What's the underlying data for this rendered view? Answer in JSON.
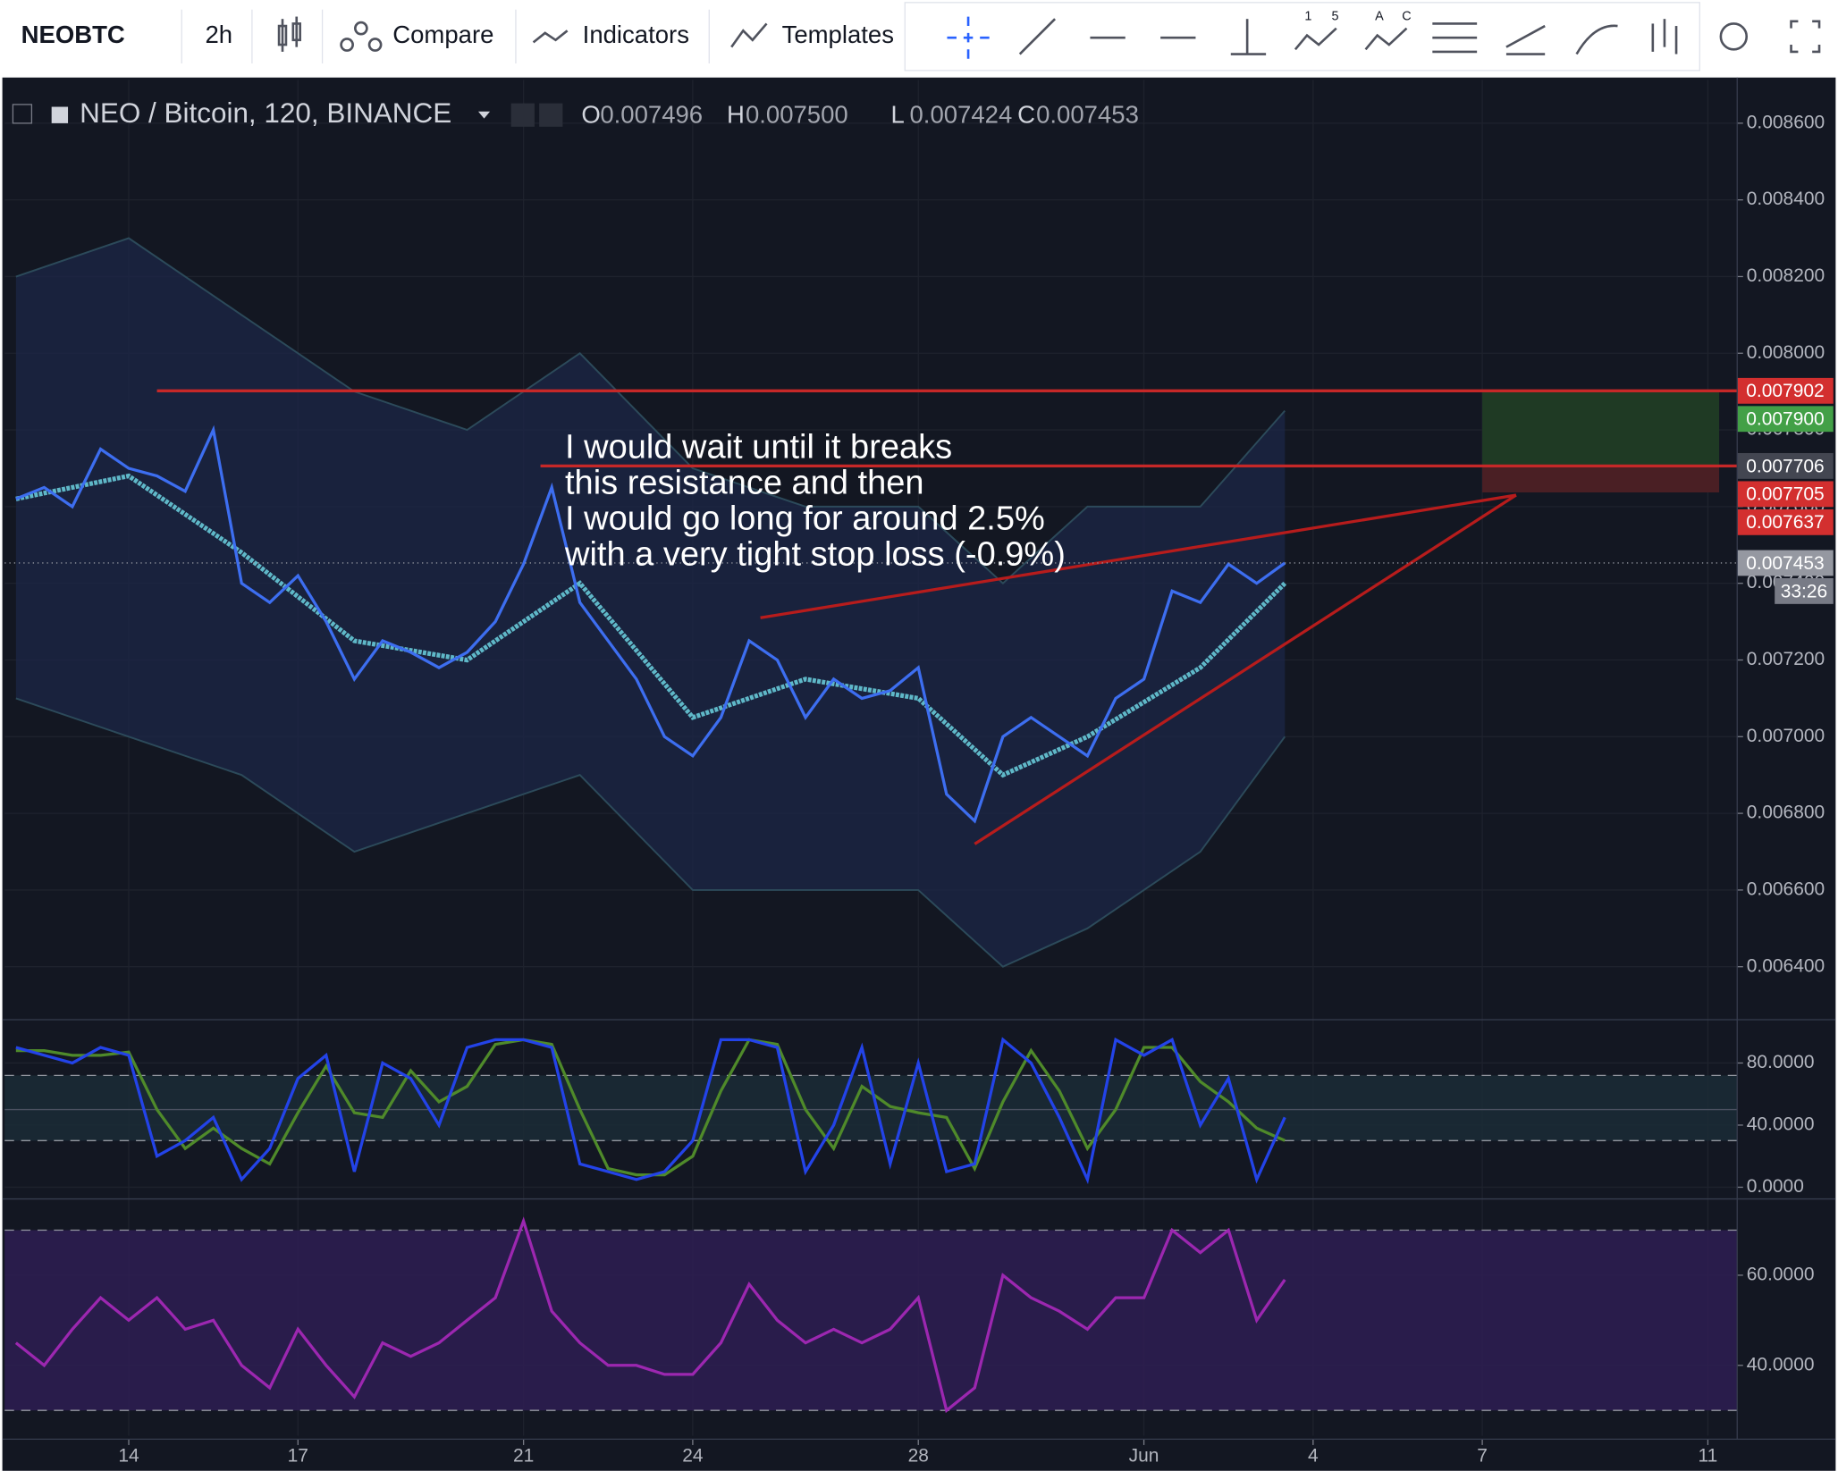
{
  "toolbar": {
    "symbol": "NEOBTC",
    "interval": "2h",
    "buttons": [
      "Compare",
      "Indicators",
      "Templates"
    ],
    "wave_labels": [
      [
        "1",
        "5"
      ],
      [
        "A",
        "C"
      ]
    ]
  },
  "chart_data": [
    {
      "type": "line",
      "title": "NEO / Bitcoin, 120, BINANCE",
      "ohlc": [
        {
          "name": "O",
          "value": 0.007496
        },
        {
          "name": "H",
          "value": 0.0075,
          "label": "0.007500"
        },
        {
          "name": "L",
          "value": 0.007424
        },
        {
          "name": "C",
          "value": 0.007453
        }
      ],
      "annotation": [
        "I would wait until it breaks",
        "this resistance and then",
        "I would go long for around 2.5%",
        "with a very tight stop loss (-0.9%)"
      ],
      "xlim": [
        11.8,
        42.52
      ],
      "ylim": [
        0.006268,
        0.008713
      ],
      "yticks": [
        {
          "value": 0.0064,
          "label": "0.006400"
        },
        {
          "value": 0.0066,
          "label": "0.006600"
        },
        {
          "value": 0.0068,
          "label": "0.006800"
        },
        {
          "value": 0.007,
          "label": "0.007000"
        },
        {
          "value": 0.0072,
          "label": "0.007200"
        },
        {
          "value": 0.0074,
          "label": "0.007400"
        },
        {
          "value": 0.0076,
          "label": "0.007600"
        },
        {
          "value": 0.0078,
          "label": "0.007800"
        },
        {
          "value": 0.008,
          "label": "0.008000"
        },
        {
          "value": 0.0082,
          "label": "0.008200"
        },
        {
          "value": 0.0084,
          "label": "0.008400"
        },
        {
          "value": 0.0086,
          "label": "0.008600"
        }
      ],
      "x": [
        12,
        12.5,
        13,
        13.5,
        14,
        14.5,
        15,
        15.5,
        16,
        16.5,
        17,
        17.5,
        18,
        18.5,
        19,
        19.5,
        20,
        20.5,
        21,
        21.5,
        22,
        22.5,
        23,
        23.5,
        24,
        24.5,
        25,
        25.5,
        26,
        26.5,
        27,
        27.5,
        28,
        28.5,
        29,
        29.5,
        30,
        30.5,
        31,
        31.5,
        32,
        32.5,
        33,
        33.5,
        34,
        34.5
      ],
      "series": [
        {
          "color": "#3d6ef0",
          "values": [
            0.00762,
            0.00765,
            0.0076,
            0.00775,
            0.0077,
            0.00768,
            0.00764,
            0.0078,
            0.0074,
            0.00735,
            0.00742,
            0.0073,
            0.00715,
            0.00725,
            0.00722,
            0.00718,
            0.00722,
            0.0073,
            0.00745,
            0.00765,
            0.00735,
            0.00725,
            0.00715,
            0.007,
            0.00695,
            0.00705,
            0.00725,
            0.0072,
            0.00705,
            0.00715,
            0.0071,
            0.00712,
            0.00718,
            0.00685,
            0.00678,
            0.007,
            0.00705,
            0.007,
            0.00695,
            0.0071,
            0.00715,
            0.00738,
            0.00735,
            0.00745,
            0.0074,
            0.007453
          ]
        }
      ],
      "bands": {
        "x": [
          12,
          14,
          16,
          18,
          20,
          22,
          24,
          26,
          28,
          29.5,
          31,
          33,
          34.5
        ],
        "color": "#1b2545",
        "line_color": "#2c4a5a",
        "upper": [
          0.0082,
          0.0083,
          0.0081,
          0.0079,
          0.0078,
          0.008,
          0.0077,
          0.0076,
          0.0076,
          0.0074,
          0.0076,
          0.0076,
          0.00785
        ],
        "lower": [
          0.0071,
          0.007,
          0.0069,
          0.0067,
          0.0068,
          0.0069,
          0.0066,
          0.0066,
          0.0066,
          0.0064,
          0.0065,
          0.0067,
          0.007
        ]
      },
      "ma": {
        "x": [
          12,
          14,
          16,
          18,
          20,
          22,
          24,
          26,
          28,
          29.5,
          31,
          33,
          34.5
        ],
        "color": "#5fb8c8",
        "values": [
          0.00762,
          0.00768,
          0.00748,
          0.00725,
          0.0072,
          0.0074,
          0.00705,
          0.00715,
          0.0071,
          0.0069,
          0.007,
          0.00718,
          0.0074
        ]
      },
      "levels": [
        {
          "value": 0.007902,
          "from": 14.5,
          "color": "#c62828"
        },
        {
          "value": 0.007706,
          "from": 21.3,
          "color": "#c62828"
        }
      ],
      "trend_lines": [
        {
          "color": "#b71c1c",
          "points": [
            [
              25.2,
              0.00731
            ],
            [
              38.6,
              0.00763
            ]
          ]
        },
        {
          "color": "#b71c1c",
          "points": [
            [
              29,
              0.00672
            ],
            [
              38.6,
              0.00763
            ]
          ]
        }
      ],
      "position": {
        "from": 38,
        "to": 42.2,
        "target": 0.0079,
        "entry": 0.007706,
        "stop": 0.007637,
        "profit_color": "#1f3a24",
        "loss_color": "#4a1f24"
      },
      "price_tags": [
        {
          "value": 0.007902,
          "label": "0.007902",
          "color": "#d32f2f"
        },
        {
          "value": 0.0079,
          "label": "0.007900",
          "color": "#43a047"
        },
        {
          "value": 0.007706,
          "label": "0.007706",
          "color": "#434651"
        },
        {
          "value": 0.007705,
          "label": "0.007705",
          "color": "#d32f2f"
        },
        {
          "value": 0.007637,
          "label": "0.007637",
          "color": "#d32f2f"
        },
        {
          "value": 0.007453,
          "label": "0.007453",
          "color": "#9598a1"
        }
      ],
      "countdown": "33:26"
    },
    {
      "type": "line",
      "xlim": [
        11.8,
        42.52
      ],
      "ylim": [
        -6.8,
        106.4
      ],
      "yticks": [
        {
          "value": 0,
          "label": "0.0000"
        },
        {
          "value": 40,
          "label": "40.0000"
        },
        {
          "value": 80,
          "label": "80.0000"
        }
      ],
      "band": [
        30,
        72
      ],
      "band_color": "#1b2c36",
      "mid_line": 50,
      "x": [
        12,
        12.5,
        13,
        13.5,
        14,
        14.5,
        15,
        15.5,
        16,
        16.5,
        17,
        17.5,
        18,
        18.5,
        19,
        19.5,
        20,
        20.5,
        21,
        21.5,
        22,
        22.5,
        23,
        23.5,
        24,
        24.5,
        25,
        25.5,
        26,
        26.5,
        27,
        27.5,
        28,
        28.5,
        29,
        29.5,
        30,
        30.5,
        31,
        31.5,
        32,
        32.5,
        33,
        33.5,
        34,
        34.5
      ],
      "series": [
        {
          "color": "#4f8a2a",
          "values": [
            88,
            88,
            85,
            85,
            87,
            50,
            25,
            38,
            25,
            15,
            48,
            78,
            48,
            45,
            75,
            55,
            65,
            92,
            95,
            92,
            50,
            12,
            8,
            8,
            20,
            62,
            95,
            92,
            50,
            25,
            65,
            52,
            48,
            45,
            12,
            55,
            88,
            62,
            25,
            50,
            90,
            90,
            68,
            55,
            38,
            30
          ]
        },
        {
          "color": "#2343e8",
          "values": [
            90,
            85,
            80,
            90,
            85,
            20,
            30,
            45,
            5,
            25,
            70,
            85,
            10,
            80,
            70,
            40,
            90,
            95,
            95,
            90,
            15,
            10,
            5,
            10,
            30,
            95,
            95,
            90,
            10,
            40,
            90,
            15,
            80,
            10,
            15,
            95,
            80,
            45,
            5,
            95,
            85,
            95,
            40,
            70,
            5,
            45
          ]
        }
      ]
    },
    {
      "type": "line",
      "xlim": [
        11.8,
        42.52
      ],
      "ylim": [
        24.4,
        76.4
      ],
      "yticks": [
        {
          "value": 40,
          "label": "40.0000"
        },
        {
          "value": 60,
          "label": "60.0000"
        }
      ],
      "band": [
        30,
        70
      ],
      "band_color": "#2e1d52",
      "xticks": [
        14,
        17,
        21,
        24,
        28,
        {
          "value": 32,
          "label": "Jun"
        },
        {
          "value": 35,
          "label": "4"
        },
        {
          "value": 38,
          "label": "7"
        },
        {
          "value": 42,
          "label": "11"
        }
      ],
      "x": [
        12,
        12.5,
        13,
        13.5,
        14,
        14.5,
        15,
        15.5,
        16,
        16.5,
        17,
        17.5,
        18,
        18.5,
        19,
        19.5,
        20,
        20.5,
        21,
        21.5,
        22,
        22.5,
        23,
        23.5,
        24,
        24.5,
        25,
        25.5,
        26,
        26.5,
        27,
        27.5,
        28,
        28.5,
        29,
        29.5,
        30,
        30.5,
        31,
        31.5,
        32,
        32.5,
        33,
        33.5,
        34,
        34.5
      ],
      "series": [
        {
          "color": "#9c27b0",
          "values": [
            45,
            40,
            48,
            55,
            50,
            55,
            48,
            50,
            40,
            35,
            48,
            40,
            33,
            45,
            42,
            45,
            50,
            55,
            72,
            52,
            45,
            40,
            40,
            38,
            38,
            45,
            58,
            50,
            45,
            48,
            45,
            48,
            55,
            30,
            35,
            60,
            55,
            52,
            48,
            55,
            55,
            70,
            65,
            70,
            50,
            59
          ]
        }
      ]
    }
  ]
}
